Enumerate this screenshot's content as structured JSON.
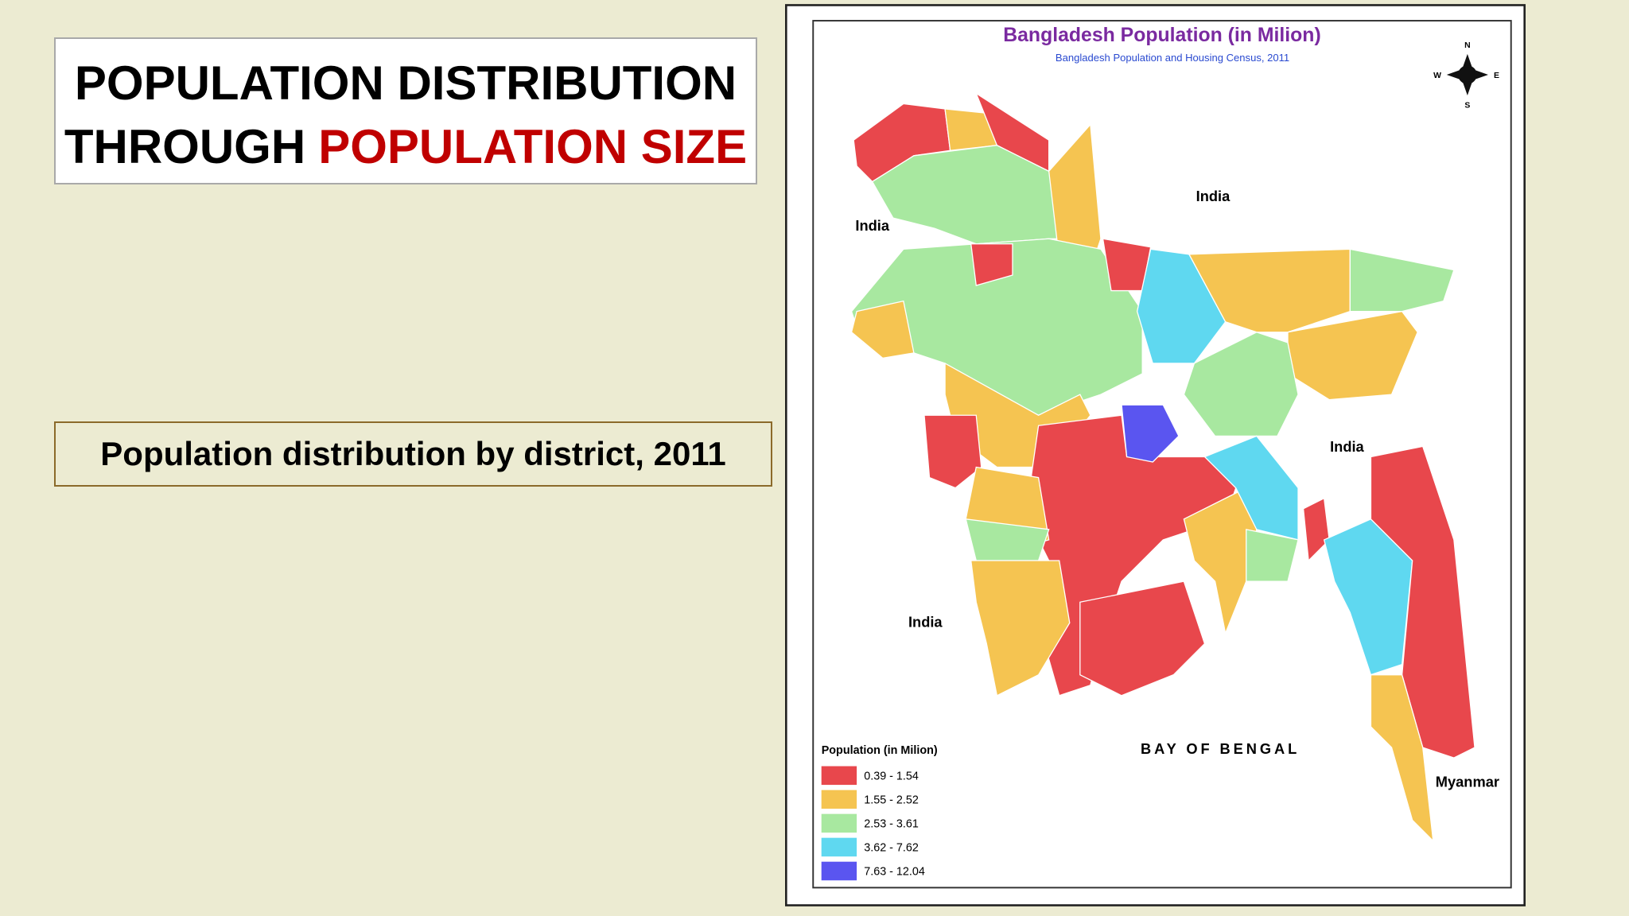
{
  "slide": {
    "title": {
      "line1": "POPULATION DISTRIBUTION",
      "line2_black": "THROUGH",
      "line2_red": "POPULATION SIZE"
    },
    "caption": "Population distribution by district, 2011"
  },
  "map": {
    "title": "Bangladesh Population (in Milion)",
    "subtitle": "Bangladesh Population and Housing Census, 2011",
    "labels": [
      "India",
      "India",
      "India",
      "India",
      "BAY OF BENGAL",
      "Myanmar"
    ],
    "compass": [
      "N",
      "S",
      "E",
      "W"
    ],
    "legend": {
      "title": "Population (in Milion)",
      "items": [
        {
          "label": "0.39 - 1.54",
          "color": "#e8474c"
        },
        {
          "label": "1.55 - 2.52",
          "color": "#f5c451"
        },
        {
          "label": "2.53 - 3.61",
          "color": "#a8e8a0"
        },
        {
          "label": "3.62 - 7.62",
          "color": "#5fd8f0"
        },
        {
          "label": "7.63 - 12.04",
          "color": "#5a55f0"
        }
      ]
    }
  }
}
